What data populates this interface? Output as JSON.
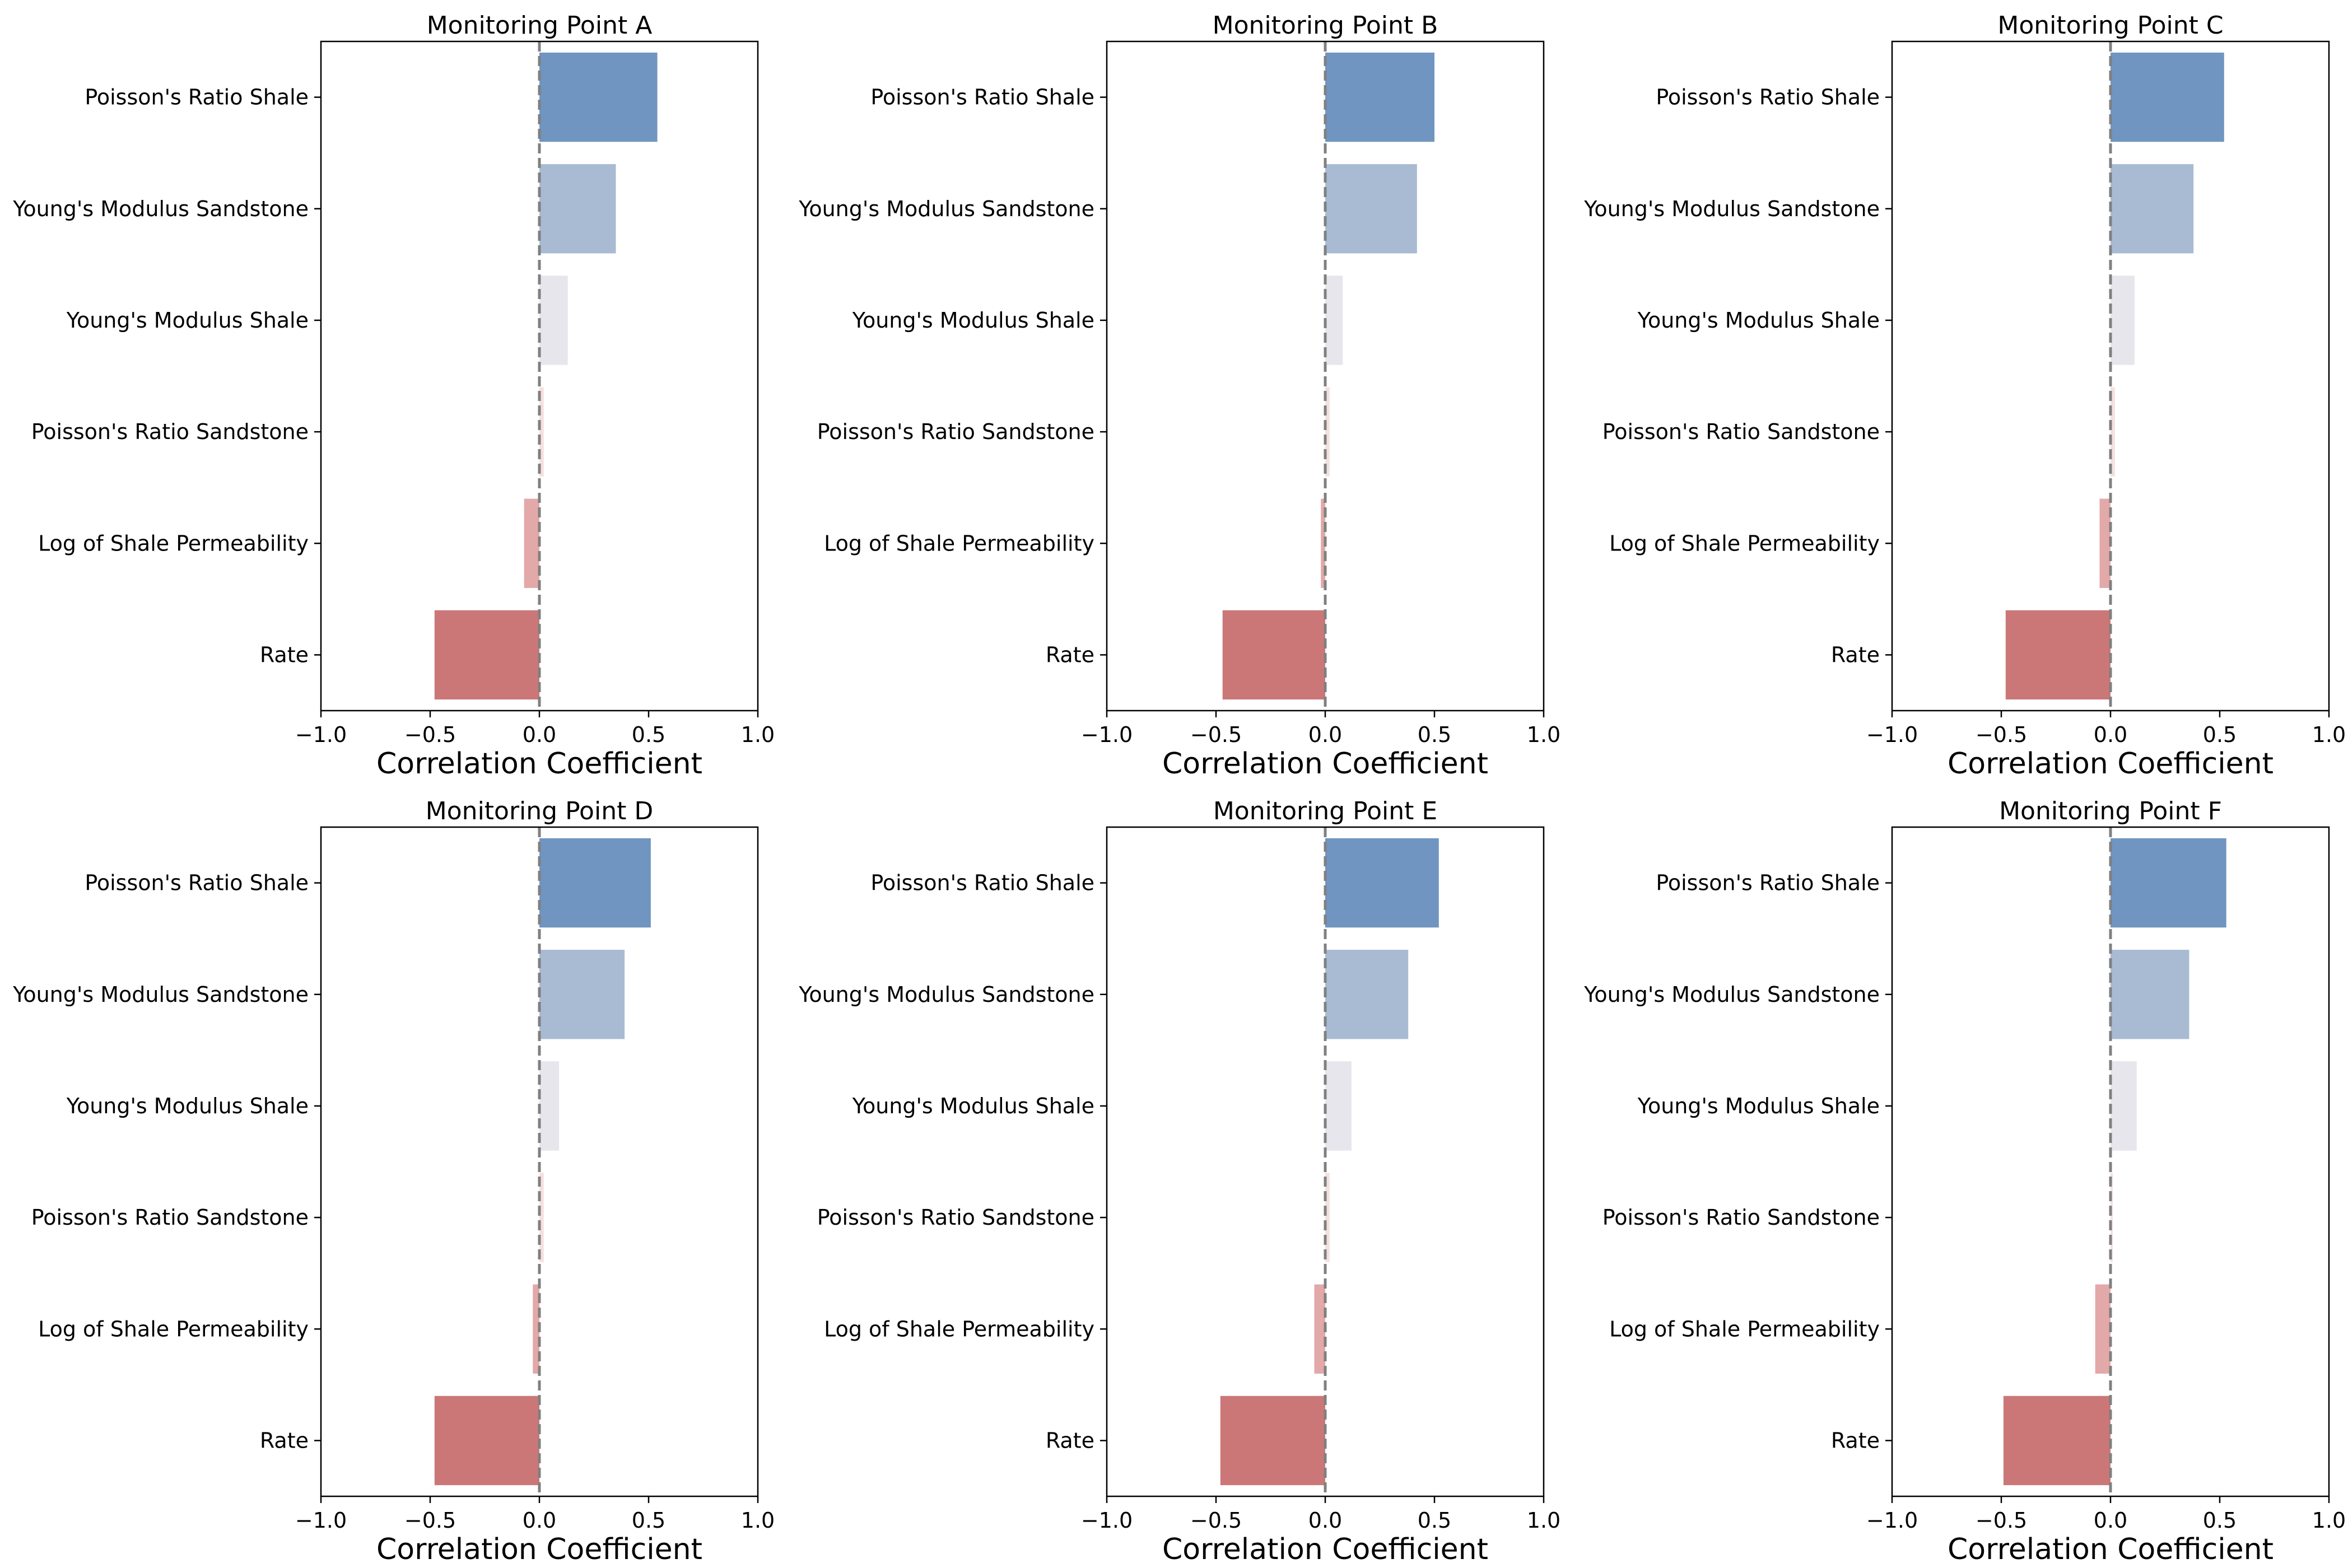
{
  "chart_data": [
    {
      "type": "bar",
      "orientation": "horizontal",
      "title": "Monitoring Point A",
      "xlabel": "Correlation Coefficient",
      "ylabel": "",
      "xlim": [
        -1.0,
        1.0
      ],
      "xticks": [
        "−1.0",
        "−0.5",
        "0.0",
        "0.5",
        "1.0"
      ],
      "categories": [
        "Poisson's Ratio Shale",
        "Young's Modulus Sandstone",
        "Young's Modulus Shale",
        "Poisson's Ratio Sandstone",
        "Log of Shale Permeability",
        "Rate"
      ],
      "values": [
        0.54,
        0.35,
        0.13,
        0.02,
        -0.07,
        -0.48
      ],
      "colors": [
        "#7095c0",
        "#a8bbd2",
        "#e6e6ec",
        "#f5e0e0",
        "#e3a8a8",
        "#cb7778"
      ],
      "reference_line": 0.0
    },
    {
      "type": "bar",
      "orientation": "horizontal",
      "title": "Monitoring Point B",
      "xlabel": "Correlation Coefficient",
      "ylabel": "",
      "xlim": [
        -1.0,
        1.0
      ],
      "xticks": [
        "−1.0",
        "−0.5",
        "0.0",
        "0.5",
        "1.0"
      ],
      "categories": [
        "Poisson's Ratio Shale",
        "Young's Modulus Sandstone",
        "Young's Modulus Shale",
        "Poisson's Ratio Sandstone",
        "Log of Shale Permeability",
        "Rate"
      ],
      "values": [
        0.5,
        0.42,
        0.08,
        0.02,
        -0.02,
        -0.47
      ],
      "colors": [
        "#7095c0",
        "#a8bbd2",
        "#e6e6ec",
        "#f5e0e0",
        "#e3a8a8",
        "#cb7778"
      ],
      "reference_line": 0.0
    },
    {
      "type": "bar",
      "orientation": "horizontal",
      "title": "Monitoring Point C",
      "xlabel": "Correlation Coefficient",
      "ylabel": "",
      "xlim": [
        -1.0,
        1.0
      ],
      "xticks": [
        "−1.0",
        "−0.5",
        "0.0",
        "0.5",
        "1.0"
      ],
      "categories": [
        "Poisson's Ratio Shale",
        "Young's Modulus Sandstone",
        "Young's Modulus Shale",
        "Poisson's Ratio Sandstone",
        "Log of Shale Permeability",
        "Rate"
      ],
      "values": [
        0.52,
        0.38,
        0.11,
        0.02,
        -0.05,
        -0.48
      ],
      "colors": [
        "#7095c0",
        "#a8bbd2",
        "#e6e6ec",
        "#f5e0e0",
        "#e3a8a8",
        "#cb7778"
      ],
      "reference_line": 0.0
    },
    {
      "type": "bar",
      "orientation": "horizontal",
      "title": "Monitoring Point D",
      "xlabel": "Correlation Coefficient",
      "ylabel": "",
      "xlim": [
        -1.0,
        1.0
      ],
      "xticks": [
        "−1.0",
        "−0.5",
        "0.0",
        "0.5",
        "1.0"
      ],
      "categories": [
        "Poisson's Ratio Shale",
        "Young's Modulus Sandstone",
        "Young's Modulus Shale",
        "Poisson's Ratio Sandstone",
        "Log of Shale Permeability",
        "Rate"
      ],
      "values": [
        0.51,
        0.39,
        0.09,
        0.02,
        -0.03,
        -0.48
      ],
      "colors": [
        "#7095c0",
        "#a8bbd2",
        "#e6e6ec",
        "#f5e0e0",
        "#e3a8a8",
        "#cb7778"
      ],
      "reference_line": 0.0
    },
    {
      "type": "bar",
      "orientation": "horizontal",
      "title": "Monitoring Point E",
      "xlabel": "Correlation Coefficient",
      "ylabel": "",
      "xlim": [
        -1.0,
        1.0
      ],
      "xticks": [
        "−1.0",
        "−0.5",
        "0.0",
        "0.5",
        "1.0"
      ],
      "categories": [
        "Poisson's Ratio Shale",
        "Young's Modulus Sandstone",
        "Young's Modulus Shale",
        "Poisson's Ratio Sandstone",
        "Log of Shale Permeability",
        "Rate"
      ],
      "values": [
        0.52,
        0.38,
        0.12,
        0.02,
        -0.05,
        -0.48
      ],
      "colors": [
        "#7095c0",
        "#a8bbd2",
        "#e6e6ec",
        "#f5e0e0",
        "#e3a8a8",
        "#cb7778"
      ],
      "reference_line": 0.0
    },
    {
      "type": "bar",
      "orientation": "horizontal",
      "title": "Monitoring Point F",
      "xlabel": "Correlation Coefficient",
      "ylabel": "",
      "xlim": [
        -1.0,
        1.0
      ],
      "xticks": [
        "−1.0",
        "−0.5",
        "0.0",
        "0.5",
        "1.0"
      ],
      "categories": [
        "Poisson's Ratio Shale",
        "Young's Modulus Sandstone",
        "Young's Modulus Shale",
        "Poisson's Ratio Sandstone",
        "Log of Shale Permeability",
        "Rate"
      ],
      "values": [
        0.53,
        0.36,
        0.12,
        0.01,
        -0.07,
        -0.49
      ],
      "colors": [
        "#7095c0",
        "#a8bbd2",
        "#e6e6ec",
        "#f5e0e0",
        "#e3a8a8",
        "#cb7778"
      ],
      "reference_line": 0.0
    }
  ]
}
